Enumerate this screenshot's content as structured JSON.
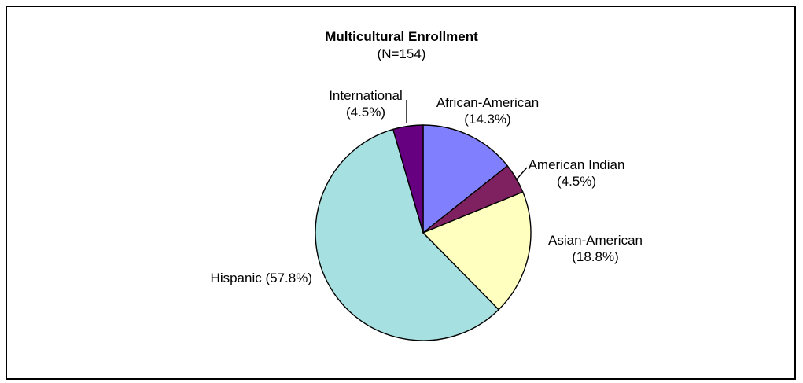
{
  "chart_data": {
    "type": "pie",
    "title": "Multicultural Enrollment",
    "subtitle": "(N=154)",
    "slices": [
      {
        "label": "African-American",
        "value_label": "(14.3%)",
        "value": 14.3,
        "color": "#8080ff"
      },
      {
        "label": "American Indian",
        "value_label": "(4.5%)",
        "value": 4.5,
        "color": "#7f2060"
      },
      {
        "label": "Asian-American",
        "value_label": "(18.8%)",
        "value": 18.8,
        "color": "#ffffc0"
      },
      {
        "label": "Hispanic (57.8%)",
        "value_label": "",
        "value": 57.8,
        "color": "#a6e0e0"
      },
      {
        "label": "International",
        "value_label": "(4.5%)",
        "value": 4.5,
        "color": "#660080"
      }
    ],
    "legend": "none",
    "start_angle": "12 o'clock",
    "direction": "clockwise"
  }
}
